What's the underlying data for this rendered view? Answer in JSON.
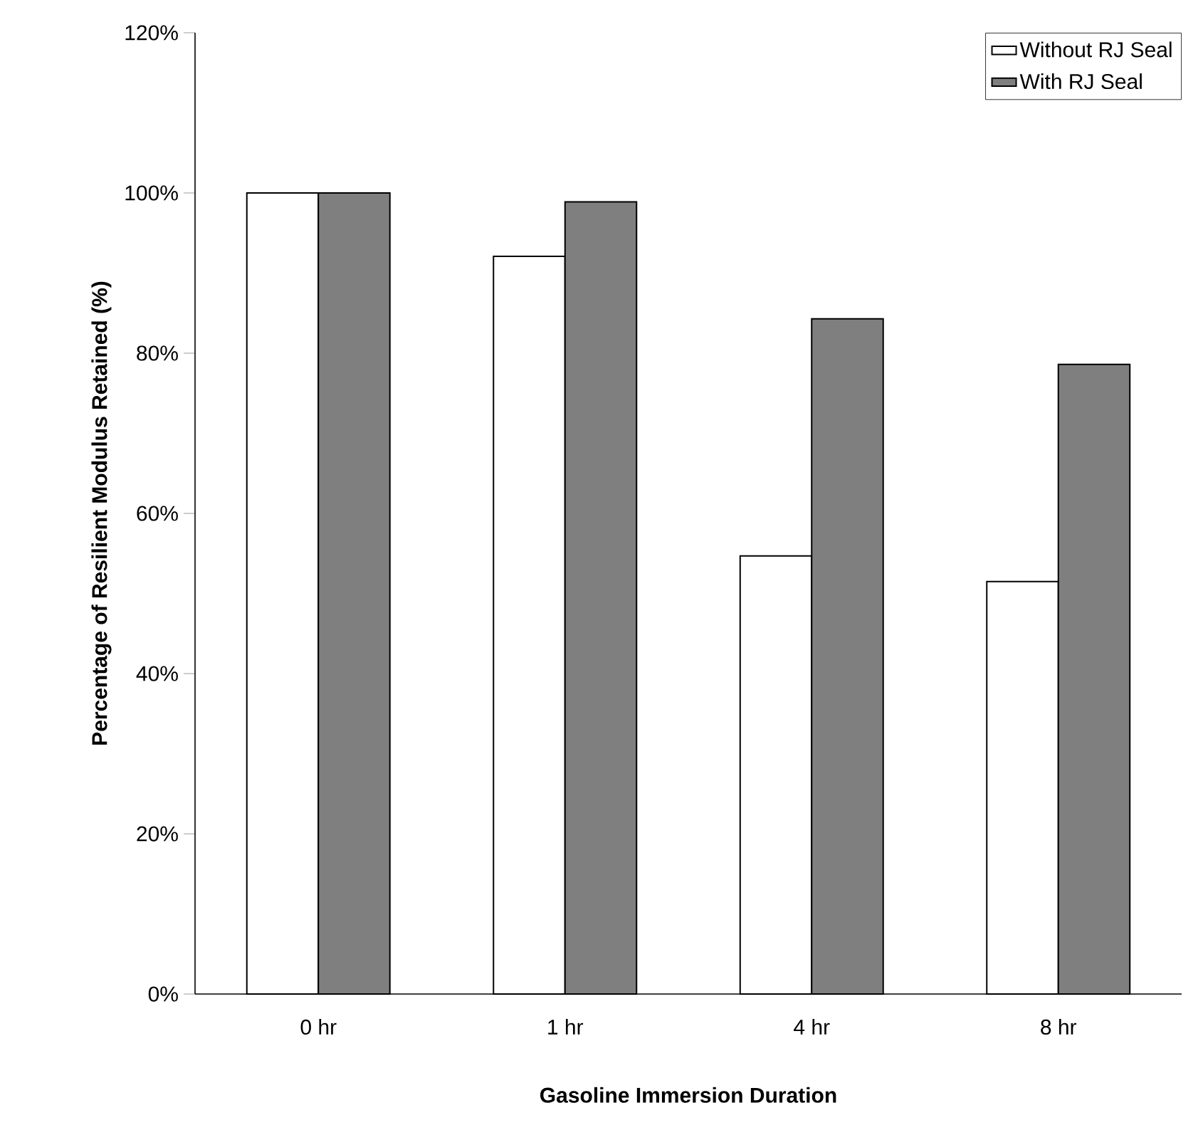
{
  "chart_data": {
    "type": "bar",
    "xlabel": "Gasoline Immersion Duration",
    "ylabel": "Percentage of Resilient Modulus Retained (%)",
    "categories": [
      "0 hr",
      "1 hr",
      "4 hr",
      "8 hr"
    ],
    "series": [
      {
        "name": "Without RJ Seal",
        "color": "#ffffff",
        "values": [
          100,
          92.1,
          54.7,
          51.5
        ]
      },
      {
        "name": "With RJ Seal",
        "color": "#7f7f7f",
        "values": [
          100,
          98.9,
          84.3,
          78.6
        ]
      }
    ],
    "ylim": [
      0,
      120
    ],
    "yticks": [
      {
        "value": 0,
        "label": "0%"
      },
      {
        "value": 20,
        "label": "20%"
      },
      {
        "value": 40,
        "label": "40%"
      },
      {
        "value": 60,
        "label": "60%"
      },
      {
        "value": 80,
        "label": "80%"
      },
      {
        "value": 100,
        "label": "100%"
      },
      {
        "value": 120,
        "label": "120%"
      }
    ],
    "legend": "top right",
    "grid": false
  }
}
